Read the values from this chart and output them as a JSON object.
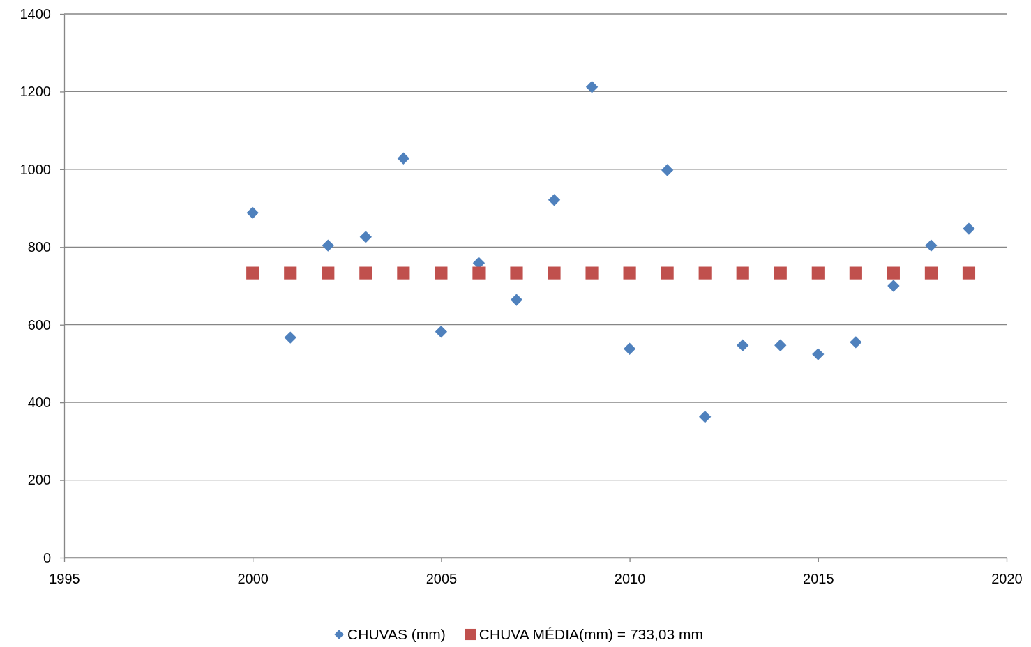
{
  "chart_data": {
    "type": "scatter",
    "x": [
      2000,
      2001,
      2002,
      2003,
      2004,
      2005,
      2006,
      2007,
      2008,
      2009,
      2010,
      2011,
      2012,
      2013,
      2014,
      2015,
      2016,
      2017,
      2018,
      2019
    ],
    "series": [
      {
        "name": "CHUVAS (mm)",
        "color": "#4f81bd",
        "marker": "diamond",
        "values": [
          888,
          567,
          804,
          826,
          1028,
          582,
          759,
          664,
          921,
          1212,
          538,
          998,
          363,
          547,
          547,
          524,
          555,
          700,
          804,
          847
        ]
      },
      {
        "name": "CHUVA MÉDIA(mm) = 733,03 mm",
        "color": "#c0504d",
        "marker": "square",
        "values": [
          733.03,
          733.03,
          733.03,
          733.03,
          733.03,
          733.03,
          733.03,
          733.03,
          733.03,
          733.03,
          733.03,
          733.03,
          733.03,
          733.03,
          733.03,
          733.03,
          733.03,
          733.03,
          733.03,
          733.03
        ]
      }
    ],
    "xlim": [
      1995,
      2020
    ],
    "xticks": [
      1995,
      2000,
      2005,
      2010,
      2015,
      2020
    ],
    "ylim": [
      0,
      1400
    ],
    "yticks": [
      0,
      200,
      400,
      600,
      800,
      1000,
      1200,
      1400
    ],
    "grid": "y",
    "legend": "bottom"
  }
}
